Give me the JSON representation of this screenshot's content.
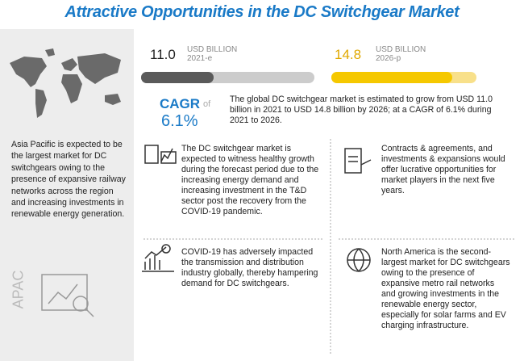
{
  "title": "Attractive Opportunities in the DC Switchgear Market",
  "market_start": {
    "value": "11.0",
    "unit": "USD BILLION",
    "year": "2021-e"
  },
  "market_end": {
    "value": "14.8",
    "unit": "USD BILLION",
    "year": "2026-p"
  },
  "cagr": {
    "label": "CAGR",
    "of": "of",
    "value": "6.1%"
  },
  "summary": "The global DC switchgear market is estimated to grow from USD 11.0 billion in 2021 to USD 14.8 billion by 2026; at a CAGR of 6.1% during 2021 to 2026.",
  "region": {
    "text": "Asia Pacific is expected to be the largest market for DC switchgears owing to the presence of expansive railway networks across the region and increasing investments in renewable energy generation.",
    "label": "APAC"
  },
  "insights": [
    {
      "text": "The DC switchgear market is expected to witness healthy growth during the forecast period due to the increasing energy demand and increasing investment in the T&D sector post the recovery from the COVID-19 pandemic."
    },
    {
      "text": "Contracts & agreements, and investments & expansions would offer lucrative opportunities for market players in the next five years."
    },
    {
      "text": "COVID-19 has adversely impacted the transmission and distribution industry globally, thereby hampering demand for DC switchgears."
    },
    {
      "text": "North America is the second-largest market for DC switchgears owing to the presence of expansive metro rail networks and growing investments in the renewable energy sector, especially for solar farms and EV charging infrastructure."
    }
  ]
}
